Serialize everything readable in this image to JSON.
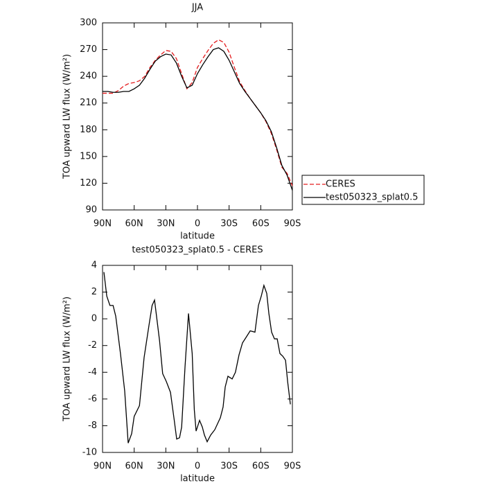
{
  "chart_data": [
    {
      "type": "line",
      "title": "JJA",
      "ylabel": "TOA upward LW flux (W/m²)",
      "xlabel": "latitude",
      "x": [
        90,
        85,
        80,
        75,
        70,
        65,
        60,
        55,
        50,
        45,
        40,
        35,
        30,
        25,
        20,
        15,
        10,
        5,
        0,
        -5,
        -10,
        -15,
        -20,
        -25,
        -30,
        -35,
        -40,
        -45,
        -50,
        -55,
        -60,
        -65,
        -70,
        -75,
        -80,
        -85,
        -90
      ],
      "series": [
        {
          "name": "CERES",
          "color": "#e41a1c",
          "linestyle": "dashed",
          "values": [
            221,
            221,
            221,
            224,
            229,
            232,
            233,
            235,
            240,
            250,
            258,
            264,
            269,
            268,
            260,
            243,
            226,
            233,
            250,
            260,
            269,
            277,
            281,
            278,
            267,
            250,
            234,
            224,
            215,
            207,
            199,
            189,
            176,
            158,
            138,
            131,
            117
          ]
        },
        {
          "name": "test050323_splat0.5",
          "color": "#000000",
          "linestyle": "solid",
          "values": [
            223,
            223,
            222,
            222,
            223,
            223,
            226,
            230,
            238,
            248,
            257,
            262,
            265,
            264,
            255,
            240,
            227,
            230,
            243,
            253,
            262,
            270,
            272,
            268,
            258,
            245,
            232,
            223,
            215,
            207,
            199,
            190,
            178,
            160,
            140,
            129,
            112
          ]
        }
      ],
      "xlim": [
        90,
        -90
      ],
      "xticks": [
        {
          "value": 90,
          "label": "90N"
        },
        {
          "value": 60,
          "label": "60N"
        },
        {
          "value": 30,
          "label": "30N"
        },
        0,
        {
          "value": -30,
          "label": "30S"
        },
        {
          "value": -60,
          "label": "60S"
        },
        {
          "value": -90,
          "label": "90S"
        }
      ],
      "ylim": [
        90,
        300
      ],
      "yticks": [
        90,
        120,
        150,
        180,
        210,
        240,
        270,
        300
      ],
      "legend": "right"
    },
    {
      "type": "line",
      "title": "test050323_splat0.5 - CERES",
      "ylabel": "TOA upward LW flux (W/m²)",
      "xlabel": "latitude",
      "x": [
        88.7,
        86,
        83,
        80,
        77.5,
        73,
        69,
        65.7,
        62.4,
        60,
        55,
        50.6,
        46,
        43,
        40.7,
        36,
        33,
        29.5,
        25.6,
        22,
        19.7,
        17,
        15,
        11.8,
        8.5,
        5,
        3,
        1.3,
        -2,
        -4.6,
        -6.6,
        -9.2,
        -12.5,
        -16.4,
        -21.7,
        -24.3,
        -26.3,
        -28.9,
        -32.9,
        -36,
        -39.4,
        -42.7,
        -46,
        -50,
        -54.5,
        -57.8,
        -60.5,
        -63,
        -65.7,
        -67.7,
        -70.3,
        -73,
        -75.6,
        -78.2,
        -80.9,
        -83.5,
        -85.5,
        -88.1
      ],
      "series": [
        {
          "name": "test050323_splat0.5 - CERES",
          "color": "#000000",
          "linestyle": "solid",
          "values": [
            3.5,
            1.7,
            1.0,
            1.0,
            0.2,
            -2.6,
            -5.4,
            -9.3,
            -8.6,
            -7.3,
            -6.5,
            -2.9,
            -0.5,
            1.0,
            1.4,
            -1.6,
            -4.1,
            -4.7,
            -5.5,
            -7.6,
            -9.0,
            -8.9,
            -8.1,
            -3.6,
            0.4,
            -2.6,
            -6.8,
            -8.4,
            -7.6,
            -8.1,
            -8.7,
            -9.2,
            -8.7,
            -8.3,
            -7.4,
            -6.6,
            -5.1,
            -4.3,
            -4.5,
            -4.0,
            -2.7,
            -1.8,
            -1.4,
            -0.9,
            -1.0,
            1.0,
            1.7,
            2.5,
            1.9,
            0.4,
            -1.0,
            -1.5,
            -1.5,
            -2.6,
            -2.8,
            -3.1,
            -4.7,
            -6.4
          ]
        }
      ],
      "xlim": [
        90,
        -90
      ],
      "xticks": [
        {
          "value": 90,
          "label": "90N"
        },
        {
          "value": 60,
          "label": "60N"
        },
        {
          "value": 30,
          "label": "30N"
        },
        0,
        {
          "value": -30,
          "label": "30S"
        },
        {
          "value": -60,
          "label": "60S"
        },
        {
          "value": -90,
          "label": "90S"
        }
      ],
      "ylim": [
        -10,
        4
      ],
      "yticks": [
        -10,
        -8,
        -6,
        -4,
        -2,
        0,
        2,
        4
      ]
    }
  ]
}
